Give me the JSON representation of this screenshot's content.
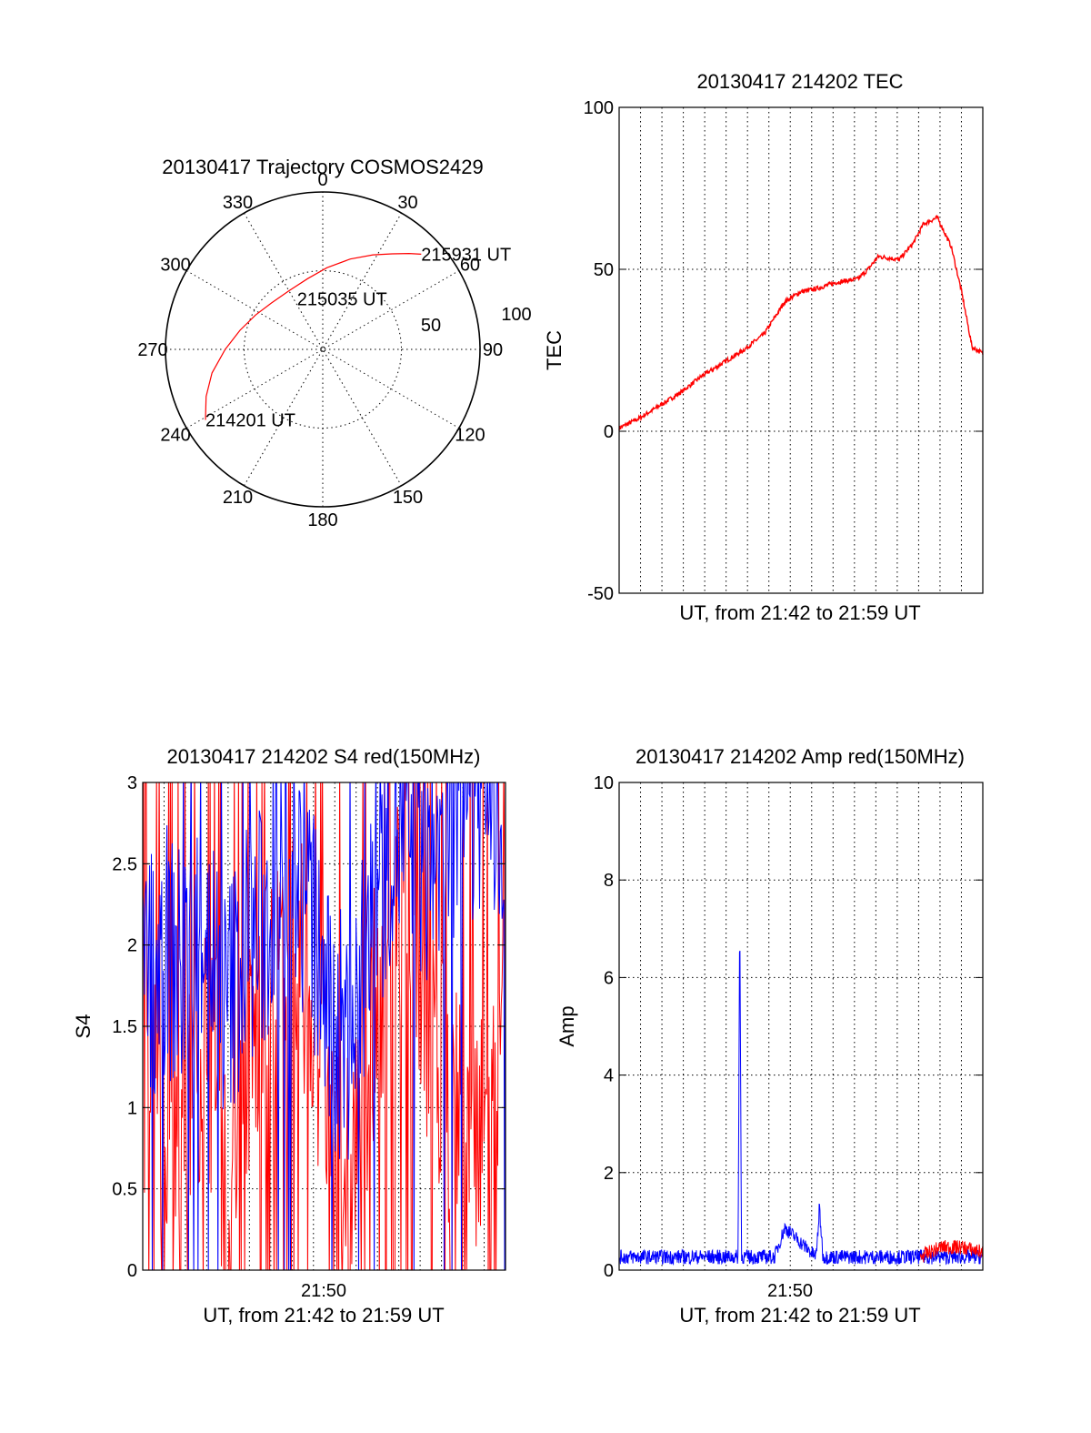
{
  "colors": {
    "red": "#ff0000",
    "blue": "#0000ff",
    "grid": "#000000"
  },
  "chart_data": [
    {
      "type": "polar",
      "title": "20130417 Trajectory COSMOS2429",
      "angle_labels": [
        "0",
        "30",
        "60",
        "90",
        "120",
        "150",
        "180",
        "210",
        "240",
        "270",
        "300",
        "330"
      ],
      "radial_labels": [
        "50",
        "100"
      ],
      "rlim": [
        0,
        100
      ],
      "direction": "clockwise, 0 at top",
      "series": [
        {
          "color": "red",
          "points": [
            {
              "az": 239,
              "r": 87
            },
            {
              "az": 248,
              "r": 80
            },
            {
              "az": 258,
              "r": 72
            },
            {
              "az": 270,
              "r": 62
            },
            {
              "az": 283,
              "r": 54
            },
            {
              "az": 297,
              "r": 48
            },
            {
              "az": 312,
              "r": 44
            },
            {
              "az": 330,
              "r": 43
            },
            {
              "az": 348,
              "r": 46
            },
            {
              "az": 3,
              "r": 52
            },
            {
              "az": 17,
              "r": 60
            },
            {
              "az": 28,
              "r": 68
            },
            {
              "az": 36,
              "r": 75
            },
            {
              "az": 42,
              "r": 82
            },
            {
              "az": 46,
              "r": 87
            }
          ]
        }
      ],
      "annotations": [
        {
          "text": "214201 UT",
          "az": 239,
          "r": 87
        },
        {
          "text": "215035 UT",
          "az": 333,
          "r": 36
        },
        {
          "text": "215931 UT",
          "az": 46,
          "r": 87
        }
      ]
    },
    {
      "type": "line",
      "title": "20130417 214202 TEC",
      "xlabel": "UT, from 21:42 to 21:59 UT",
      "ylabel": "TEC",
      "xlim": [
        "21:42:02",
        "21:59:31"
      ],
      "ylim": [
        -50,
        100
      ],
      "yticks": [
        "-50",
        "0",
        "50",
        "100"
      ],
      "grid": true,
      "series": [
        {
          "color": "red",
          "x": [
            "21:42:02",
            "21:43:00",
            "21:44:00",
            "21:45:00",
            "21:46:00",
            "21:47:00",
            "21:48:00",
            "21:49:00",
            "21:50:00",
            "21:50:45",
            "21:51:30",
            "21:52:30",
            "21:53:30",
            "21:54:00",
            "21:54:30",
            "21:55:30",
            "21:56:10",
            "21:56:40",
            "21:57:20",
            "21:58:00",
            "21:58:30",
            "21:59:00",
            "21:59:31"
          ],
          "y": [
            1,
            4,
            8,
            12,
            17,
            21,
            25,
            30,
            40,
            43,
            44,
            46,
            47,
            50,
            54,
            53,
            58,
            64,
            66,
            57,
            43,
            26,
            24
          ]
        }
      ]
    },
    {
      "type": "line",
      "title": "20130417 214202 S4 red(150MHz)",
      "xlabel": "UT, from 21:42 to 21:59 UT",
      "ylabel": "S4",
      "xlim": [
        "21:42:02",
        "21:59:31"
      ],
      "ylim": [
        0,
        3
      ],
      "yticks": [
        "0",
        "0.5",
        "1",
        "1.5",
        "2",
        "2.5",
        "3"
      ],
      "xticks": [
        "21:50"
      ],
      "grid": true,
      "series": [
        {
          "color": "blue",
          "description_free": true,
          "x": [
            "21:42:02",
            "21:43:00",
            "21:44:00",
            "21:45:00",
            "21:46:00",
            "21:47:00",
            "21:48:00",
            "21:49:00",
            "21:50:00",
            "21:51:00",
            "21:52:00",
            "21:53:00",
            "21:54:00",
            "21:55:00",
            "21:56:00",
            "21:57:00",
            "21:58:00",
            "21:59:00",
            "21:59:31"
          ],
          "y": [
            1.7,
            2.0,
            1.8,
            2.2,
            1.6,
            2.0,
            2.1,
            2.5,
            2.3,
            1.5,
            1.4,
            2.0,
            2.7,
            2.6,
            2.5,
            2.8,
            2.9,
            2.9,
            2.9
          ]
        },
        {
          "color": "red",
          "x": [
            "21:42:02",
            "21:43:00",
            "21:44:00",
            "21:45:00",
            "21:46:00",
            "21:47:00",
            "21:48:00",
            "21:49:00",
            "21:50:00",
            "21:51:00",
            "21:52:00",
            "21:53:00",
            "21:54:00",
            "21:55:00",
            "21:56:00",
            "21:57:00",
            "21:58:00",
            "21:59:00",
            "21:59:31"
          ],
          "y": [
            1.2,
            1.0,
            0.8,
            1.5,
            0.6,
            1.2,
            1.6,
            2.0,
            1.8,
            0.9,
            0.6,
            1.4,
            2.2,
            2.0,
            1.3,
            1.0,
            0.6,
            1.1,
            1.5
          ]
        }
      ]
    },
    {
      "type": "line",
      "title": "20130417 214202 Amp red(150MHz)",
      "xlabel": "UT, from 21:42 to 21:59 UT",
      "ylabel": "Amp",
      "xlim": [
        "21:42:02",
        "21:59:31"
      ],
      "ylim": [
        0,
        10
      ],
      "yticks": [
        "0",
        "2",
        "4",
        "6",
        "8",
        "10"
      ],
      "xticks": [
        "21:50"
      ],
      "grid": true,
      "series": [
        {
          "color": "blue",
          "x": [
            "21:42:02",
            "21:45:00",
            "21:47:45",
            "21:47:50",
            "21:47:55",
            "21:49:30",
            "21:50:00",
            "21:51:30",
            "21:51:40",
            "21:51:50",
            "21:53:00",
            "21:56:30",
            "21:59:31"
          ],
          "y": [
            0.3,
            0.3,
            0.3,
            7.5,
            0.3,
            0.3,
            0.9,
            0.3,
            1.3,
            0.3,
            0.3,
            0.3,
            0.3
          ]
        },
        {
          "color": "red",
          "x": [
            "21:56:30",
            "21:57:30",
            "21:58:30",
            "21:59:31"
          ],
          "y": [
            0.3,
            0.5,
            0.5,
            0.4
          ]
        }
      ]
    }
  ]
}
